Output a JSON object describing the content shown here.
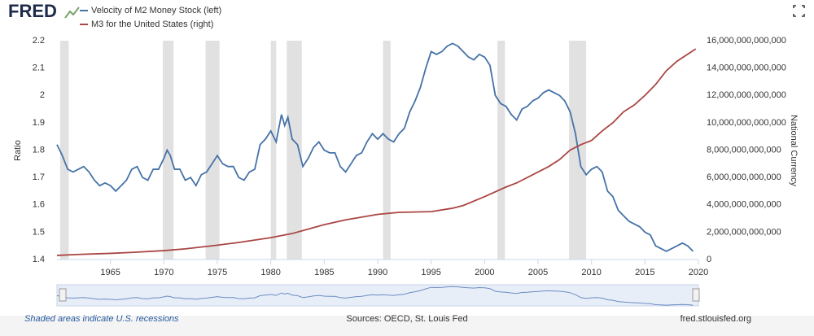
{
  "chart_data": {
    "type": "line",
    "logo": "FRED",
    "ylabel": "Ratio",
    "y2label": "National Currency",
    "footnote": "Shaded areas indicate U.S. recessions",
    "source": "Sources: OECD, St. Louis Fed",
    "site": "fred.stlouisfed.org",
    "xlim": [
      1960,
      2020
    ],
    "xticks": [
      1965,
      1970,
      1975,
      1980,
      1985,
      1990,
      1995,
      2000,
      2005,
      2010,
      2015,
      2020
    ],
    "ylim": [
      1.4,
      2.2
    ],
    "yticks": [
      1.4,
      1.5,
      1.6,
      1.7,
      1.8,
      1.9,
      2.0,
      2.1,
      2.2
    ],
    "y2lim": [
      0,
      16000000000000
    ],
    "y2ticks": [
      0,
      {
        "value": 2000000000000,
        "label": "2,000,000,000,000"
      },
      {
        "value": 4000000000000,
        "label": "4,000,000,000,000"
      },
      {
        "value": 6000000000000,
        "label": "6,000,000,000,000"
      },
      {
        "value": 8000000000000,
        "label": "8,000,000,000,000"
      },
      {
        "value": 10000000000000,
        "label": "10,000,000,000,000"
      },
      {
        "value": 12000000000000,
        "label": "12,000,000,000,000"
      },
      {
        "value": 14000000000000,
        "label": "14,000,000,000,000"
      },
      {
        "value": 16000000000000,
        "label": "16,000,000,000,000"
      }
    ],
    "grid": false,
    "recessions": [
      [
        1960.3,
        1961.1
      ],
      [
        1969.9,
        1970.9
      ],
      [
        1973.9,
        1975.2
      ],
      [
        1980.0,
        1980.5
      ],
      [
        1981.5,
        1982.9
      ],
      [
        1990.5,
        1991.2
      ],
      [
        2001.2,
        2001.9
      ],
      [
        2007.9,
        2009.5
      ]
    ],
    "series": [
      {
        "name": "Velocity of M2 Money Stock (left)",
        "color": "#4572a7",
        "axis": "y",
        "x": [
          1960.0,
          1960.5,
          1961.0,
          1961.5,
          1962.0,
          1962.5,
          1963.0,
          1963.5,
          1964.0,
          1964.5,
          1965.0,
          1965.5,
          1966.0,
          1966.5,
          1967.0,
          1967.5,
          1968.0,
          1968.5,
          1969.0,
          1969.5,
          1970.0,
          1970.3,
          1970.6,
          1971.0,
          1971.5,
          1972.0,
          1972.5,
          1973.0,
          1973.5,
          1974.0,
          1974.5,
          1975.0,
          1975.5,
          1976.0,
          1976.5,
          1977.0,
          1977.5,
          1978.0,
          1978.5,
          1979.0,
          1979.5,
          1980.0,
          1980.5,
          1981.0,
          1981.3,
          1981.6,
          1982.0,
          1982.5,
          1983.0,
          1983.5,
          1984.0,
          1984.5,
          1985.0,
          1985.5,
          1986.0,
          1986.5,
          1987.0,
          1987.5,
          1988.0,
          1988.5,
          1989.0,
          1989.5,
          1990.0,
          1990.5,
          1991.0,
          1991.5,
          1992.0,
          1992.5,
          1993.0,
          1993.5,
          1994.0,
          1994.5,
          1995.0,
          1995.5,
          1996.0,
          1996.5,
          1997.0,
          1997.5,
          1998.0,
          1998.5,
          1999.0,
          1999.5,
          2000.0,
          2000.5,
          2001.0,
          2001.5,
          2002.0,
          2002.5,
          2003.0,
          2003.5,
          2004.0,
          2004.5,
          2005.0,
          2005.5,
          2006.0,
          2006.5,
          2007.0,
          2007.5,
          2008.0,
          2008.5,
          2009.0,
          2009.5,
          2010.0,
          2010.5,
          2011.0,
          2011.5,
          2012.0,
          2012.5,
          2013.0,
          2013.5,
          2014.0,
          2014.5,
          2015.0,
          2015.5,
          2016.0,
          2016.5,
          2017.0,
          2017.5,
          2018.0,
          2018.5,
          2019.0,
          2019.5
        ],
        "values": [
          1.82,
          1.78,
          1.73,
          1.72,
          1.73,
          1.74,
          1.72,
          1.69,
          1.67,
          1.68,
          1.67,
          1.65,
          1.67,
          1.69,
          1.73,
          1.74,
          1.7,
          1.69,
          1.73,
          1.73,
          1.77,
          1.8,
          1.78,
          1.73,
          1.73,
          1.69,
          1.7,
          1.67,
          1.71,
          1.72,
          1.75,
          1.78,
          1.75,
          1.74,
          1.74,
          1.7,
          1.69,
          1.72,
          1.73,
          1.82,
          1.84,
          1.87,
          1.83,
          1.93,
          1.89,
          1.92,
          1.84,
          1.82,
          1.74,
          1.77,
          1.81,
          1.83,
          1.8,
          1.79,
          1.79,
          1.74,
          1.72,
          1.75,
          1.78,
          1.79,
          1.83,
          1.86,
          1.84,
          1.86,
          1.84,
          1.83,
          1.86,
          1.88,
          1.94,
          1.98,
          2.03,
          2.1,
          2.16,
          2.15,
          2.16,
          2.18,
          2.19,
          2.18,
          2.16,
          2.14,
          2.13,
          2.15,
          2.14,
          2.11,
          2.0,
          1.97,
          1.96,
          1.93,
          1.91,
          1.95,
          1.96,
          1.98,
          1.99,
          2.01,
          2.02,
          2.01,
          2.0,
          1.98,
          1.94,
          1.86,
          1.74,
          1.71,
          1.73,
          1.74,
          1.72,
          1.65,
          1.63,
          1.58,
          1.56,
          1.54,
          1.53,
          1.52,
          1.5,
          1.49,
          1.45,
          1.44,
          1.43,
          1.44,
          1.45,
          1.46,
          1.45,
          1.43
        ]
      },
      {
        "name": "M3 for the United States (right)",
        "color": "#aa4643",
        "axis": "y2",
        "x": [
          1960,
          1962,
          1965,
          1967,
          1970,
          1972,
          1975,
          1977,
          1980,
          1982,
          1985,
          1987,
          1990,
          1992,
          1995,
          1997,
          1998,
          2000,
          2002,
          2003,
          2005,
          2006,
          2007,
          2008,
          2009,
          2010,
          2011,
          2012,
          2013,
          2014,
          2015,
          2016,
          2017,
          2018,
          2019.75
        ],
        "values": [
          300000000000,
          370000000000,
          450000000000,
          520000000000,
          650000000000,
          780000000000,
          1050000000000,
          1250000000000,
          1600000000000,
          1900000000000,
          2550000000000,
          2900000000000,
          3300000000000,
          3450000000000,
          3500000000000,
          3750000000000,
          3950000000000,
          4600000000000,
          5300000000000,
          5600000000000,
          6400000000000,
          6800000000000,
          7300000000000,
          8000000000000,
          8400000000000,
          8700000000000,
          9400000000000,
          10000000000000,
          10800000000000,
          11300000000000,
          12000000000000,
          12800000000000,
          13800000000000,
          14500000000000,
          15400000000000
        ]
      }
    ]
  }
}
